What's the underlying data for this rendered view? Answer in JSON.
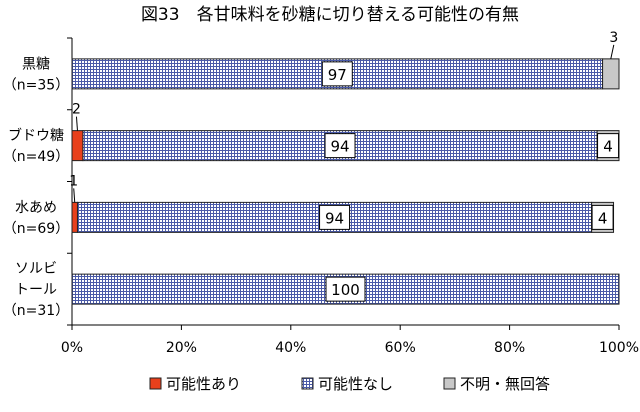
{
  "chart_data": {
    "type": "bar",
    "orientation": "horizontal",
    "stacked": true,
    "title": "図33　各甘味料を砂糖に切り替える可能性の有無",
    "categories": [
      {
        "lines": [
          "黒糖",
          "（n=35）"
        ]
      },
      {
        "lines": [
          "ブドウ糖",
          "（n=49）"
        ]
      },
      {
        "lines": [
          "水あめ",
          "（n=69）"
        ]
      },
      {
        "lines": [
          "ソルビ",
          "トール",
          "（n=31）"
        ]
      }
    ],
    "series": [
      {
        "name": "可能性あり",
        "values": [
          0,
          2,
          1,
          0
        ],
        "color": "#e8401c",
        "pattern": "solid"
      },
      {
        "name": "可能性なし",
        "values": [
          97,
          94,
          94,
          100
        ],
        "color": "#4a5aa8",
        "pattern": "grid"
      },
      {
        "name": "不明・無回答",
        "values": [
          3,
          4,
          4,
          0
        ],
        "color": "#c8c8c8",
        "pattern": "solid"
      }
    ],
    "data_labels": [
      {
        "row": 0,
        "series": 1,
        "text": "97",
        "style": "boxed"
      },
      {
        "row": 0,
        "series": 2,
        "text": "3",
        "style": "callout"
      },
      {
        "row": 1,
        "series": 0,
        "text": "2",
        "style": "callout"
      },
      {
        "row": 1,
        "series": 1,
        "text": "94",
        "style": "boxed"
      },
      {
        "row": 1,
        "series": 2,
        "text": "4",
        "style": "boxed"
      },
      {
        "row": 2,
        "series": 0,
        "text": "1",
        "style": "callout"
      },
      {
        "row": 2,
        "series": 1,
        "text": "94",
        "style": "boxed"
      },
      {
        "row": 2,
        "series": 2,
        "text": "4",
        "style": "boxed"
      },
      {
        "row": 3,
        "series": 1,
        "text": "100",
        "style": "boxed"
      }
    ],
    "xlim": [
      0,
      100
    ],
    "x_ticks": [
      "0%",
      "20%",
      "40%",
      "60%",
      "80%",
      "100%"
    ],
    "grid": false,
    "legend_position": "bottom"
  }
}
